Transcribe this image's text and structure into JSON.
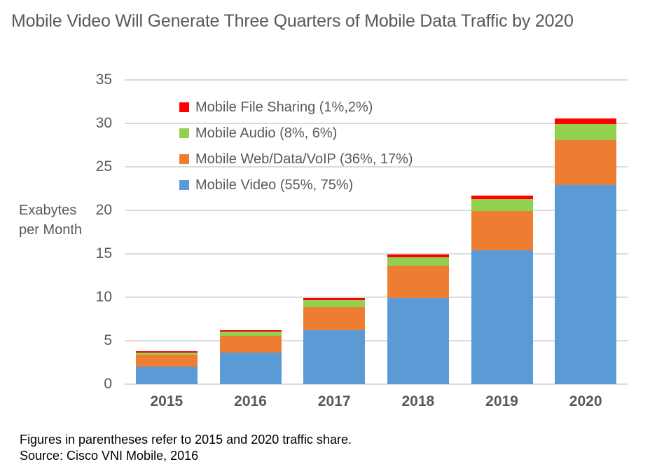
{
  "title": "Mobile Video Will Generate Three Quarters of Mobile Data Traffic by 2020",
  "y_axis": {
    "label_line1": "Exabytes",
    "label_line2": "per Month",
    "ticks": [
      0,
      5,
      10,
      15,
      20,
      25,
      30,
      35
    ]
  },
  "legend": [
    {
      "label": "Mobile File Sharing (1%,2%)",
      "color": "#FF0000"
    },
    {
      "label": "Mobile Audio (8%, 6%)",
      "color": "#92D050"
    },
    {
      "label": "Mobile Web/Data/VoIP (36%, 17%)",
      "color": "#ED7D31"
    },
    {
      "label": "Mobile Video (55%, 75%)",
      "color": "#5B9BD5"
    }
  ],
  "footnote_line1": "Figures in parentheses refer to 2015 and 2020 traffic share.",
  "footnote_line2": "Source: Cisco VNI Mobile, 2016",
  "chart_data": {
    "type": "bar",
    "stacked": true,
    "title": "Mobile Video Will Generate Three Quarters of Mobile Data Traffic by 2020",
    "categories": [
      "2015",
      "2016",
      "2017",
      "2018",
      "2019",
      "2020"
    ],
    "series": [
      {
        "name": "Mobile Video (55%, 75%)",
        "color": "#5B9BD5",
        "values": [
          2.0,
          3.6,
          6.2,
          9.9,
          15.4,
          22.9
        ]
      },
      {
        "name": "Mobile Web/Data/VoIP (36%, 17%)",
        "color": "#ED7D31",
        "values": [
          1.35,
          1.95,
          2.7,
          3.7,
          4.5,
          5.2
        ]
      },
      {
        "name": "Mobile Audio (8%, 6%)",
        "color": "#92D050",
        "values": [
          0.28,
          0.5,
          0.8,
          1.0,
          1.4,
          1.8
        ]
      },
      {
        "name": "Mobile File Sharing (1%,2%)",
        "color": "#FF0000",
        "values": [
          0.07,
          0.15,
          0.2,
          0.3,
          0.4,
          0.7
        ]
      }
    ],
    "totals": [
      3.7,
      6.2,
      9.9,
      14.9,
      21.7,
      30.6
    ],
    "xlabel": "",
    "ylabel": "Exabytes per Month",
    "ylim": [
      0,
      35
    ],
    "grid": true,
    "gridline_color": "#DBDBDB",
    "legend_position": "upper-left-inside",
    "text_color": "#595959"
  }
}
